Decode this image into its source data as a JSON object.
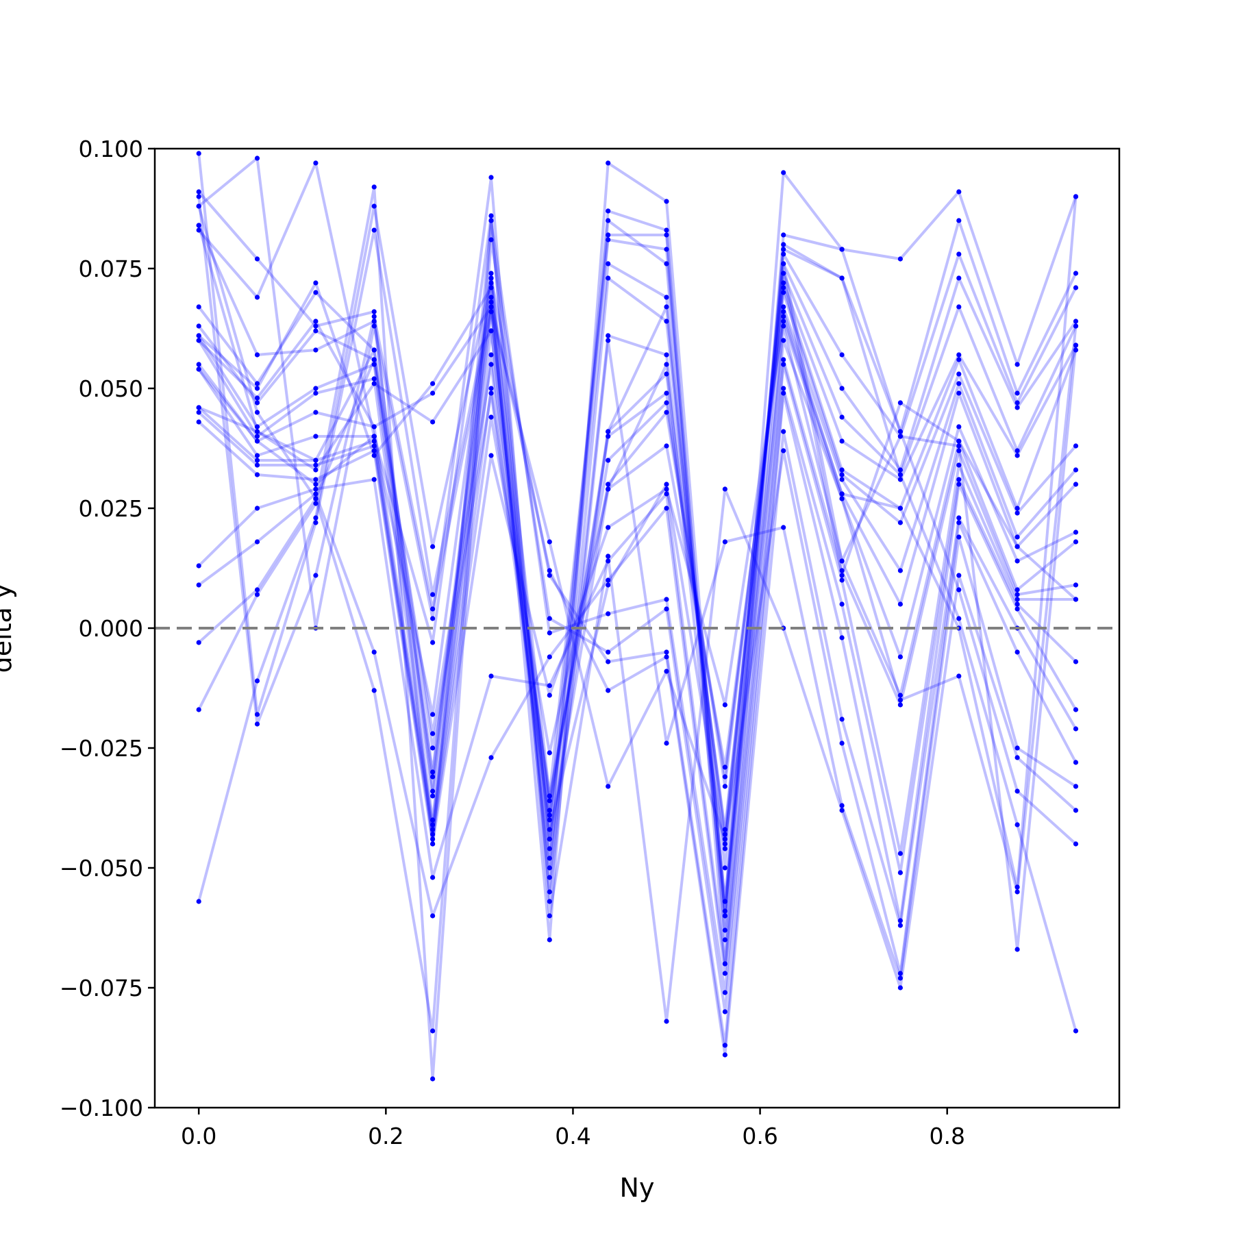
{
  "chart_data": {
    "type": "line",
    "title": "",
    "xlabel": "Ny",
    "ylabel": "delta y",
    "xlim": [
      -0.047,
      0.984
    ],
    "ylim": [
      -0.1,
      0.1
    ],
    "x": [
      0.0,
      0.0625,
      0.125,
      0.1875,
      0.25,
      0.3125,
      0.375,
      0.4375,
      0.5,
      0.5625,
      0.625,
      0.6875,
      0.75,
      0.8125,
      0.875,
      0.9375
    ],
    "xticks": [
      0.0,
      0.2,
      0.4,
      0.6,
      0.8
    ],
    "xtick_labels": [
      "0.0",
      "0.2",
      "0.4",
      "0.6",
      "0.8"
    ],
    "yticks": [
      -0.1,
      -0.075,
      -0.05,
      -0.025,
      0.0,
      0.025,
      0.05,
      0.075,
      0.1
    ],
    "ytick_labels": [
      "−0.100",
      "−0.075",
      "−0.050",
      "−0.025",
      "0.000",
      "0.025",
      "0.050",
      "0.075",
      "0.100"
    ],
    "reference_line": {
      "y": 0.0,
      "style": "dashed",
      "color": "#808080"
    },
    "line_color": "#0000ff",
    "marker_color": "#0000ff",
    "grid": false,
    "legend": "none",
    "series": [
      {
        "values": [
          0.091,
          0.077,
          0.063,
          0.066,
          -0.045,
          0.085,
          -0.046,
          0.087,
          0.083,
          -0.065,
          0.082,
          0.079,
          0.077,
          0.091,
          0.055,
          0.09
        ]
      },
      {
        "values": [
          0.084,
          0.057,
          0.058,
          0.064,
          -0.034,
          0.074,
          -0.035,
          0.081,
          0.079,
          -0.06,
          0.079,
          0.073,
          0.041,
          0.085,
          0.049,
          0.074
        ]
      },
      {
        "values": [
          0.067,
          0.051,
          0.07,
          0.058,
          -0.03,
          0.072,
          -0.044,
          0.076,
          0.069,
          -0.057,
          0.078,
          0.057,
          0.04,
          0.078,
          0.047,
          0.071
        ]
      },
      {
        "values": [
          0.063,
          0.047,
          0.062,
          0.056,
          -0.031,
          0.069,
          -0.055,
          0.073,
          0.064,
          -0.05,
          0.076,
          0.05,
          0.033,
          0.073,
          0.046,
          0.064
        ]
      },
      {
        "values": [
          0.061,
          0.042,
          0.05,
          0.055,
          -0.035,
          0.067,
          -0.052,
          0.061,
          0.057,
          -0.045,
          0.074,
          0.044,
          0.032,
          0.067,
          0.037,
          0.063
        ]
      },
      {
        "values": [
          0.06,
          0.04,
          0.049,
          0.052,
          -0.04,
          0.066,
          -0.039,
          0.041,
          0.053,
          -0.043,
          0.072,
          0.039,
          0.031,
          0.057,
          0.036,
          0.059
        ]
      },
      {
        "values": [
          0.055,
          0.039,
          0.045,
          0.042,
          -0.041,
          0.062,
          -0.038,
          0.04,
          0.049,
          -0.042,
          0.071,
          0.033,
          0.025,
          0.056,
          0.025,
          0.058
        ]
      },
      {
        "values": [
          0.054,
          0.036,
          0.04,
          0.04,
          -0.042,
          0.057,
          -0.036,
          0.035,
          0.047,
          -0.033,
          0.07,
          0.032,
          0.022,
          0.053,
          0.024,
          0.038
        ]
      },
      {
        "values": [
          0.046,
          0.035,
          0.035,
          0.039,
          -0.043,
          0.05,
          -0.035,
          0.03,
          0.045,
          -0.031,
          0.067,
          0.031,
          0.012,
          0.051,
          0.019,
          0.033
        ]
      },
      {
        "values": [
          0.045,
          0.034,
          0.034,
          0.038,
          -0.044,
          0.044,
          -0.026,
          0.029,
          0.038,
          -0.029,
          0.066,
          0.028,
          0.005,
          0.049,
          0.017,
          0.03
        ]
      },
      {
        "values": [
          0.043,
          0.032,
          0.031,
          0.037,
          -0.045,
          0.036,
          -0.014,
          0.021,
          0.029,
          -0.016,
          0.064,
          0.027,
          -0.006,
          0.042,
          0.014,
          0.02
        ]
      },
      {
        "values": [
          0.013,
          0.025,
          0.029,
          0.031,
          -0.052,
          -0.01,
          -0.012,
          0.014,
          0.028,
          -0.07,
          0.063,
          0.014,
          -0.014,
          0.039,
          0.008,
          0.018
        ]
      },
      {
        "values": [
          0.009,
          0.018,
          0.028,
          -0.005,
          -0.06,
          -0.027,
          -0.006,
          0.01,
          0.025,
          -0.072,
          0.056,
          0.012,
          -0.016,
          0.037,
          0.007,
          0.009
        ]
      },
      {
        "values": [
          -0.003,
          0.008,
          0.027,
          -0.013,
          -0.084,
          0.085,
          -0.001,
          0.003,
          0.006,
          -0.076,
          0.055,
          0.01,
          -0.047,
          0.034,
          0.006,
          0.006
        ]
      },
      {
        "values": [
          -0.017,
          0.007,
          0.026,
          0.092,
          -0.094,
          0.081,
          0.002,
          -0.005,
          0.004,
          -0.08,
          0.05,
          0.005,
          -0.051,
          0.031,
          0.005,
          -0.007
        ]
      },
      {
        "values": [
          -0.057,
          -0.011,
          0.023,
          0.088,
          0.017,
          0.073,
          0.011,
          -0.007,
          -0.005,
          -0.087,
          0.049,
          -0.002,
          -0.061,
          0.03,
          0.004,
          -0.017
        ]
      },
      {
        "values": [
          0.099,
          -0.018,
          0.022,
          0.083,
          0.007,
          0.068,
          0.012,
          -0.013,
          -0.006,
          -0.089,
          0.041,
          -0.019,
          -0.062,
          0.023,
          0.0,
          -0.021
        ]
      },
      {
        "values": [
          0.09,
          -0.02,
          0.011,
          0.065,
          0.004,
          0.066,
          0.018,
          -0.033,
          -0.009,
          -0.044,
          0.037,
          -0.024,
          -0.072,
          0.022,
          -0.005,
          -0.028
        ]
      },
      {
        "values": [
          0.088,
          0.098,
          0.0,
          0.063,
          0.002,
          0.094,
          -0.057,
          0.06,
          -0.024,
          0.018,
          0.021,
          -0.037,
          -0.073,
          0.019,
          -0.025,
          -0.033
        ]
      },
      {
        "values": [
          0.083,
          0.069,
          0.097,
          0.04,
          -0.003,
          0.086,
          -0.06,
          0.015,
          -0.082,
          0.029,
          0.0,
          -0.038,
          -0.075,
          0.011,
          -0.027,
          -0.038
        ]
      },
      {
        "values": [
          0.061,
          0.05,
          0.072,
          0.036,
          0.051,
          0.071,
          -0.065,
          0.097,
          0.089,
          -0.06,
          0.095,
          0.079,
          0.041,
          0.008,
          -0.034,
          -0.045
        ]
      },
      {
        "values": [
          0.06,
          0.048,
          0.064,
          0.042,
          0.049,
          0.067,
          -0.05,
          0.085,
          0.076,
          -0.063,
          0.08,
          0.073,
          0.032,
          0.002,
          -0.041,
          -0.084
        ]
      },
      {
        "values": [
          0.046,
          0.041,
          0.033,
          0.051,
          0.043,
          0.062,
          -0.048,
          0.041,
          0.067,
          -0.057,
          0.065,
          0.028,
          0.025,
          0.0,
          -0.054,
          0.09
        ]
      },
      {
        "values": [
          0.054,
          0.039,
          0.03,
          0.04,
          -0.018,
          0.073,
          -0.044,
          0.029,
          0.055,
          -0.059,
          0.06,
          0.027,
          -0.015,
          -0.01,
          -0.055,
          0.063
        ]
      },
      {
        "values": [
          0.088,
          0.045,
          0.027,
          0.056,
          -0.022,
          0.055,
          -0.042,
          0.009,
          0.03,
          -0.046,
          0.076,
          0.014,
          0.04,
          0.038,
          -0.067,
          0.059
        ]
      },
      {
        "values": [
          0.084,
          0.041,
          0.035,
          0.058,
          -0.025,
          0.049,
          -0.04,
          0.082,
          0.082,
          -0.07,
          0.074,
          0.011,
          0.047,
          0.039,
          0.017,
          0.006
        ]
      }
    ]
  }
}
